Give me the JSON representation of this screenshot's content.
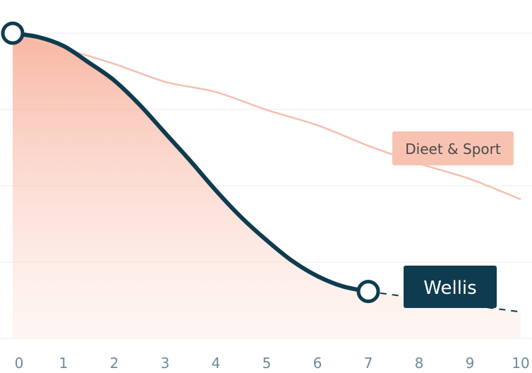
{
  "chart_data": {
    "type": "line",
    "title": "",
    "xlabel": "",
    "ylabel": "",
    "x_ticks": [
      "0",
      "1",
      "2",
      "3",
      "4",
      "5",
      "6",
      "7",
      "8",
      "9",
      "10"
    ],
    "xlim": [
      0,
      10
    ],
    "ylim": [
      0,
      100
    ],
    "grid": true,
    "series": [
      {
        "name": "Dieet & Sport",
        "color": "#f6bfae",
        "style": "thin",
        "points": [
          [
            0,
            100
          ],
          [
            1,
            94
          ],
          [
            2,
            88
          ],
          [
            3,
            81
          ],
          [
            4,
            77
          ],
          [
            5,
            70
          ],
          [
            6,
            64
          ],
          [
            7,
            56
          ],
          [
            8,
            49
          ],
          [
            9,
            43
          ],
          [
            10,
            35
          ]
        ]
      },
      {
        "name": "Wellis",
        "color": "#0e3c4e",
        "style": "bold-with-area",
        "area_color": "#f7a992",
        "points": [
          [
            0,
            100
          ],
          [
            0.5,
            98.5
          ],
          [
            1,
            95
          ],
          [
            1.5,
            88.5
          ],
          [
            2,
            81.5
          ],
          [
            2.5,
            72
          ],
          [
            3,
            61
          ],
          [
            3.5,
            50
          ],
          [
            4,
            38.5
          ],
          [
            4.5,
            28
          ],
          [
            5,
            19
          ],
          [
            5.5,
            11
          ],
          [
            6,
            5
          ],
          [
            6.5,
            1
          ],
          [
            7,
            -1
          ]
        ],
        "projection": [
          [
            7,
            -1
          ],
          [
            10,
            -9
          ]
        ]
      }
    ]
  }
}
